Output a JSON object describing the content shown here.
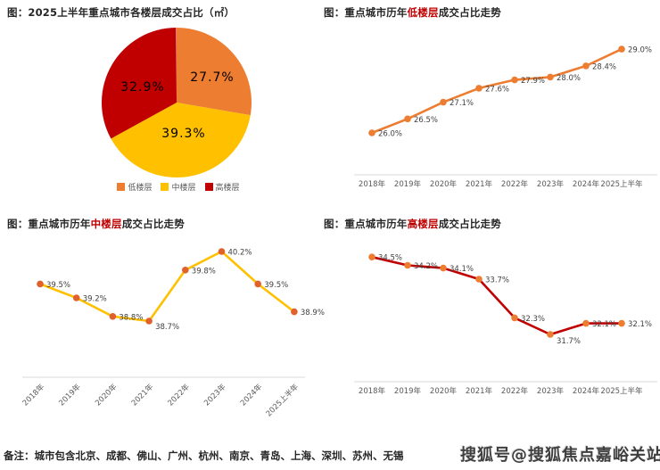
{
  "categories": [
    "2018年",
    "2019年",
    "2020年",
    "2021年",
    "2022年",
    "2023年",
    "2024年",
    "2025上半年"
  ],
  "charts": [
    {
      "type": "pie",
      "title": "图：2025上半年重点城市各楼层成交占比（㎡）",
      "labels": [
        "低楼层",
        "中楼层",
        "高楼层"
      ],
      "values": [
        27.7,
        39.3,
        32.9
      ],
      "value_labels": [
        "27.7%",
        "39.3%",
        "32.9%"
      ],
      "colors": [
        "#ED7D31",
        "#FFC000",
        "#C00000"
      ],
      "legend_position": "bottom",
      "start_angle": "top",
      "direction": "clockwise"
    },
    {
      "type": "line",
      "title_prefix": "图：重点城市历年",
      "title_highlight": "低楼层",
      "title_suffix": "成交占比走势",
      "categories": [
        "2018年",
        "2019年",
        "2020年",
        "2021年",
        "2022年",
        "2023年",
        "2024年",
        "2025上半年"
      ],
      "values": [
        26.0,
        26.5,
        27.1,
        27.6,
        27.9,
        28.0,
        28.4,
        29.0
      ],
      "ylim": [
        25.5,
        29.5
      ],
      "line_color": "#ED7D31",
      "marker_color": "#ED7D31",
      "grid": false,
      "x_labels_rotated": false
    },
    {
      "type": "line",
      "title_prefix": "图：重点城市历年",
      "title_highlight": "中楼层",
      "title_suffix": "成交占比走势",
      "categories": [
        "2018年",
        "2019年",
        "2020年",
        "2021年",
        "2022年",
        "2023年",
        "2024年",
        "2025上半年"
      ],
      "values": [
        39.5,
        39.2,
        38.8,
        38.7,
        39.8,
        40.2,
        39.5,
        38.9
      ],
      "ylim": [
        38.0,
        41.0
      ],
      "line_color": "#FFC000",
      "marker_color": "#E0612C",
      "grid": false,
      "x_labels_rotated": true
    },
    {
      "type": "line",
      "title_prefix": "图：重点城市历年",
      "title_highlight": "高楼层",
      "title_suffix": "成交占比走势",
      "categories": [
        "2018年",
        "2019年",
        "2020年",
        "2021年",
        "2022年",
        "2023年",
        "2024年",
        "2025上半年"
      ],
      "values": [
        34.5,
        34.2,
        34.1,
        33.7,
        32.3,
        31.7,
        32.1,
        32.1
      ],
      "ylim": [
        31.0,
        35.0
      ],
      "line_color": "#C00000",
      "marker_color": "#ED7D31",
      "grid": false,
      "x_labels_rotated": false
    }
  ],
  "style_colors": {
    "axis_line": "#D9D9D9",
    "axis_label": "#595959",
    "data_label": "#404040",
    "title_text": "#262626",
    "title_highlight": "#C00000"
  },
  "footer": {
    "note": "备注：城市包含北京、成都、佛山、广州、杭州、南京、青岛、上海、深圳、苏州、无锡",
    "watermark": "搜狐号@搜狐焦点嘉峪关站"
  }
}
